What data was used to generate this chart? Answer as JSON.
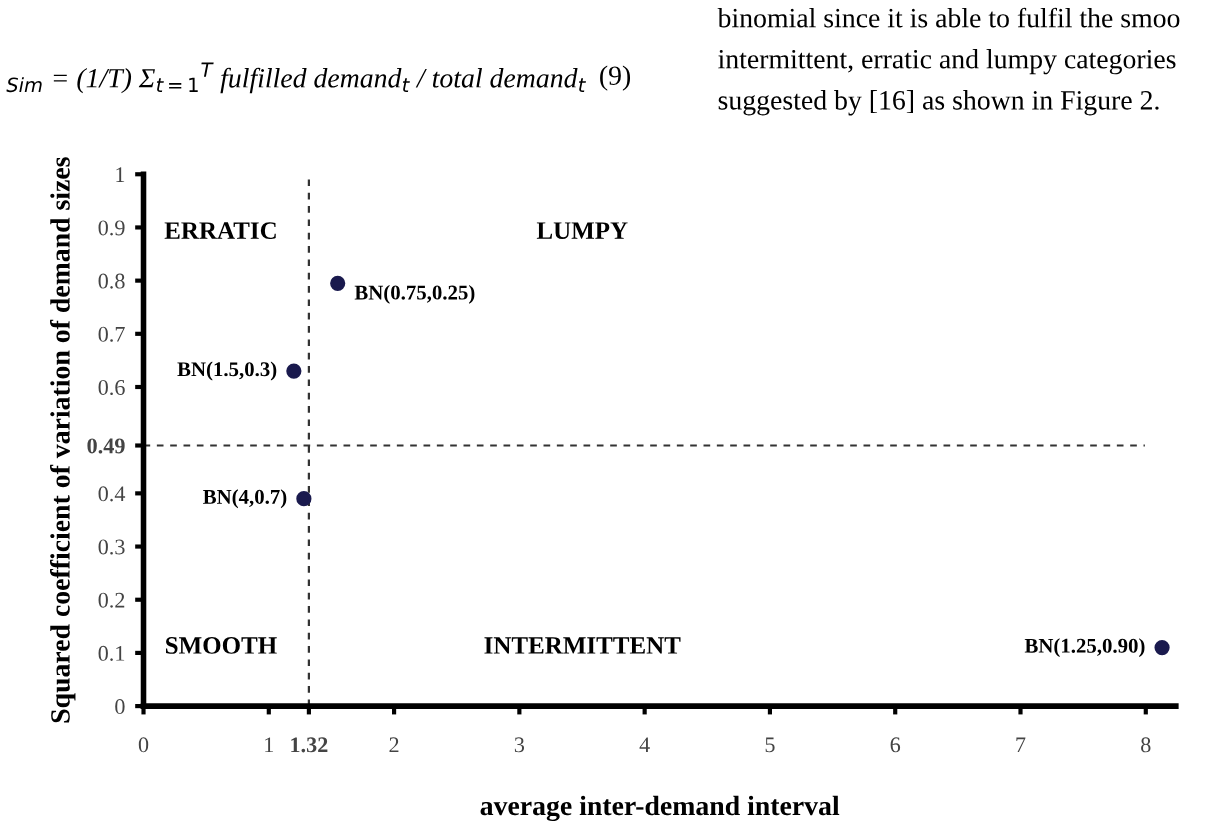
{
  "chart_data": {
    "type": "scatter",
    "xlabel": "average inter-demand interval",
    "ylabel": "Squared coefficient of variation of demand sizes",
    "x": [
      1.2,
      1.55,
      1.28,
      8.13
    ],
    "series": [
      {
        "color": "#1a1a4e",
        "values": [
          0.63,
          0.795,
          0.39,
          0.11
        ]
      }
    ],
    "marker": "circle",
    "xlim": [
      0,
      8.24
    ],
    "ylim": [
      0,
      1
    ],
    "xticks": [
      0,
      1,
      {
        "value": 1.32,
        "label": "1.32"
      },
      2,
      3,
      4,
      5,
      6,
      7,
      8
    ],
    "yticks": [
      0,
      0.1,
      0.2,
      0.3,
      0.4,
      {
        "value": 0.49,
        "label": "0.49"
      },
      0.6,
      0.7,
      0.8,
      0.9,
      1
    ],
    "ref_lines": [
      {
        "axis": "x",
        "value": 1.32,
        "line_style": "dashed",
        "color": "#333333"
      },
      {
        "axis": "y",
        "value": 0.49,
        "line_style": "dashed",
        "color": "#333333"
      }
    ],
    "grid": false,
    "annotations": [
      {
        "text": "BN(1.5,0.3)",
        "x": 1.2,
        "y": 0.63
      },
      {
        "text": "BN(0.75,0.25)",
        "x": 1.55,
        "y": 0.795
      },
      {
        "text": "BN(4,0.7)",
        "x": 1.28,
        "y": 0.39
      },
      {
        "text": "BN(1.25,0.90)",
        "x": 8.13,
        "y": 0.11
      },
      "ERRATIC",
      "LUMPY",
      "SMOOTH",
      "INTERMITTENT",
      "$_{Sim}$ = (1/T) Σ$_{t=1}$$^{T}$ fulfilled demand$_{t}$ / total demand$_{t}$",
      "(9)",
      "binomial since it is able to fulfil the smoo",
      "intermittent, erratic and lumpy categories",
      "suggested by [16] as shown in Figure 2."
    ]
  }
}
